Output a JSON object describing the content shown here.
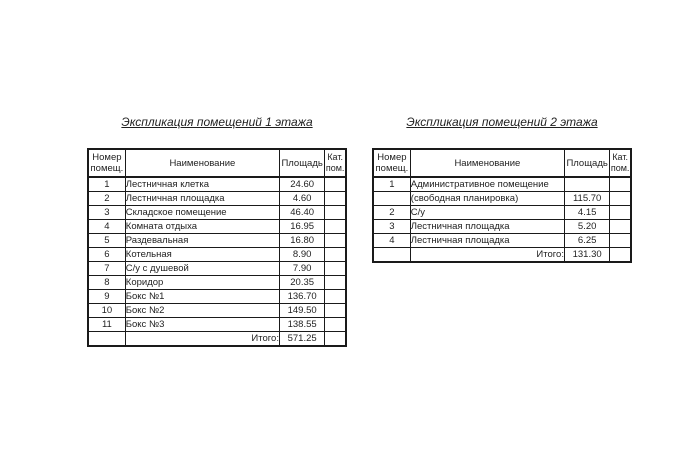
{
  "page": {
    "background": "#ffffff",
    "text_color": "#1f1f1f",
    "border_color": "#1a1a1a"
  },
  "tables": [
    {
      "title": "Экспликация помещений 1 этажа",
      "headers": {
        "number_line1": "Номер",
        "number_line2": "помещ.",
        "name": "Наименование",
        "area": "Площадь",
        "category_line1": "Кат.",
        "category_line2": "пом."
      },
      "rows": [
        {
          "num": "1",
          "name": "Лестничная клетка",
          "area": "24.60",
          "cat": ""
        },
        {
          "num": "2",
          "name": "Лестничная площадка",
          "area": "4.60",
          "cat": ""
        },
        {
          "num": "3",
          "name": "Складское помещение",
          "area": "46.40",
          "cat": ""
        },
        {
          "num": "4",
          "name": "Комната отдыха",
          "area": "16.95",
          "cat": ""
        },
        {
          "num": "5",
          "name": "Раздевальная",
          "area": "16.80",
          "cat": ""
        },
        {
          "num": "6",
          "name": "Котельная",
          "area": "8.90",
          "cat": ""
        },
        {
          "num": "7",
          "name": "С/у с душевой",
          "area": "7.90",
          "cat": ""
        },
        {
          "num": "8",
          "name": "Коридор",
          "area": "20.35",
          "cat": ""
        },
        {
          "num": "9",
          "name": "Бокс №1",
          "area": "136.70",
          "cat": ""
        },
        {
          "num": "10",
          "name": "Бокс №2",
          "area": "149.50",
          "cat": ""
        },
        {
          "num": "11",
          "name": "Бокс №3",
          "area": "138.55",
          "cat": ""
        }
      ],
      "total_label": "Итого:",
      "total_value": "571.25"
    },
    {
      "title": "Экспликация помещений 2 этажа",
      "headers": {
        "number_line1": "Номер",
        "number_line2": "помещ.",
        "name": "Наименование",
        "area": "Площадь",
        "category_line1": "Кат.",
        "category_line2": "пом."
      },
      "rows": [
        {
          "num": "1",
          "name": "Административное помещение",
          "area": "",
          "cat": ""
        },
        {
          "num": "",
          "name": "(свободная планировка)",
          "area": "115.70",
          "cat": ""
        },
        {
          "num": "2",
          "name": "С/у",
          "area": "4.15",
          "cat": ""
        },
        {
          "num": "3",
          "name": "Лестничная площадка",
          "area": "5.20",
          "cat": ""
        },
        {
          "num": "4",
          "name": "Лестничная площадка",
          "area": "6.25",
          "cat": ""
        }
      ],
      "total_label": "Итого:",
      "total_value": "131.30"
    }
  ]
}
